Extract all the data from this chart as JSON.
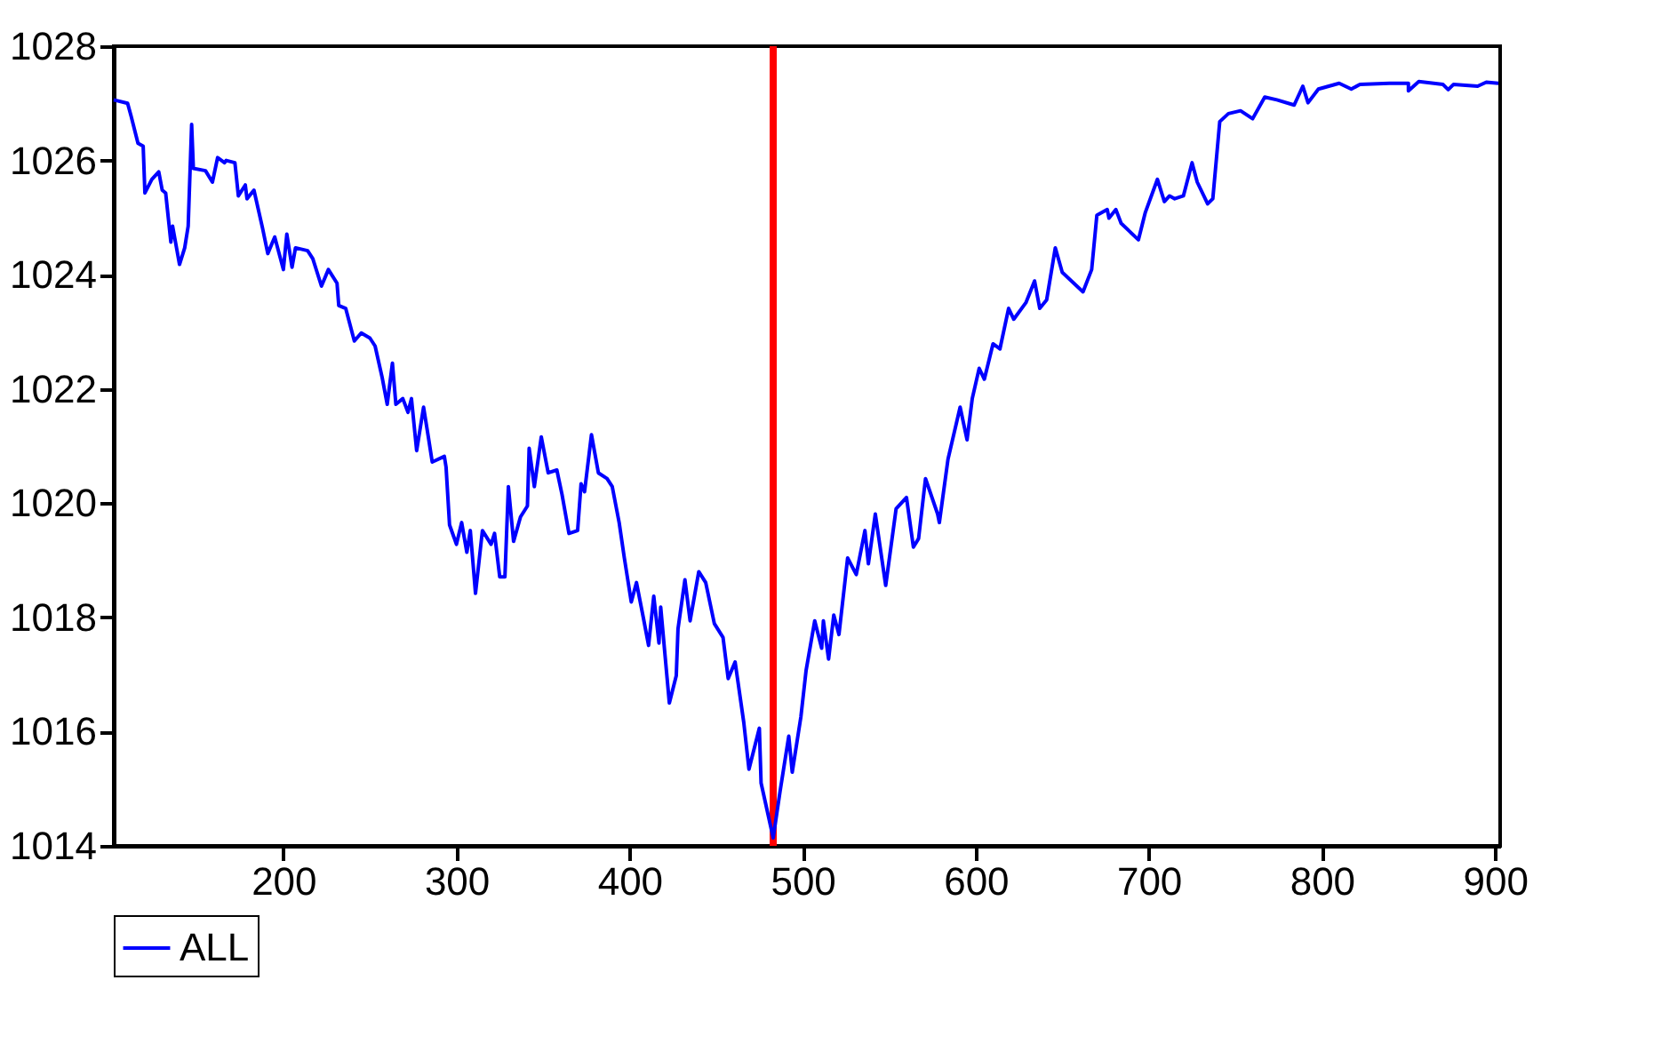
{
  "chart_data": {
    "type": "line",
    "xlim": [
      102,
      903
    ],
    "ylim": [
      1014,
      1028
    ],
    "xticks": [
      200,
      300,
      400,
      500,
      600,
      700,
      800,
      900
    ],
    "yticks": [
      1014,
      1016,
      1018,
      1020,
      1022,
      1024,
      1026,
      1028
    ],
    "grid": false,
    "legend": "bottom",
    "marker": "none",
    "line_style": "solid",
    "series": [
      {
        "name": "ALL",
        "color": "#0000ff",
        "x": [
          102,
          110,
          112,
          116,
          119,
          120,
          124,
          128,
          130,
          132,
          135,
          136,
          140,
          143,
          145,
          147,
          148,
          155,
          159,
          162,
          166,
          167,
          172,
          174,
          178,
          179,
          183,
          188,
          191,
          195,
          200,
          202,
          205,
          207,
          214,
          217,
          222,
          226,
          231,
          232,
          236,
          241,
          245,
          250,
          253,
          257,
          260,
          263,
          265,
          269,
          272,
          274,
          277,
          281,
          284,
          286,
          293,
          294,
          296,
          300,
          303,
          306,
          308,
          311,
          315,
          320,
          322,
          325,
          328,
          330,
          333,
          337,
          341,
          342,
          345,
          349,
          353,
          358,
          361,
          365,
          370,
          372,
          374,
          378,
          382,
          387,
          390,
          394,
          397,
          401,
          404,
          408,
          411,
          414,
          417,
          418,
          423,
          427,
          428,
          432,
          435,
          440,
          444,
          449,
          454,
          457,
          461,
          466,
          469,
          475,
          476,
          483,
          487,
          492,
          494,
          499,
          502,
          507,
          511,
          512,
          515,
          518,
          521,
          526,
          531,
          536,
          538,
          542,
          548,
          554,
          560,
          564,
          567,
          571,
          578,
          579,
          584,
          591,
          595,
          598,
          602,
          605,
          610,
          614,
          619,
          622,
          629,
          634,
          637,
          641,
          646,
          650,
          662,
          667,
          670,
          676,
          677,
          681,
          684,
          694,
          698,
          705,
          709,
          712,
          715,
          720,
          725,
          728,
          734,
          737,
          741,
          746,
          753,
          760,
          767,
          774,
          784,
          789,
          792,
          798,
          810,
          817,
          822,
          839,
          850,
          850,
          856,
          870,
          873,
          876,
          890,
          895,
          902
        ],
        "values": [
          1027.06,
          1027.0,
          1026.78,
          1026.3,
          1026.25,
          1025.43,
          1025.67,
          1025.8,
          1025.48,
          1025.43,
          1024.57,
          1024.85,
          1024.18,
          1024.47,
          1024.85,
          1026.63,
          1025.86,
          1025.82,
          1025.62,
          1026.05,
          1025.96,
          1026.0,
          1025.96,
          1025.38,
          1025.57,
          1025.33,
          1025.48,
          1024.81,
          1024.37,
          1024.66,
          1024.09,
          1024.71,
          1024.13,
          1024.47,
          1024.42,
          1024.28,
          1023.8,
          1024.09,
          1023.85,
          1023.46,
          1023.41,
          1022.84,
          1022.98,
          1022.89,
          1022.75,
          1022.21,
          1021.73,
          1022.45,
          1021.73,
          1021.83,
          1021.59,
          1021.83,
          1020.92,
          1021.68,
          1021.11,
          1020.72,
          1020.82,
          1020.63,
          1019.62,
          1019.28,
          1019.66,
          1019.14,
          1019.52,
          1018.42,
          1019.52,
          1019.28,
          1019.47,
          1018.71,
          1018.71,
          1020.29,
          1019.33,
          1019.76,
          1019.95,
          1020.96,
          1020.29,
          1021.16,
          1020.53,
          1020.58,
          1020.15,
          1019.47,
          1019.52,
          1020.34,
          1020.2,
          1021.2,
          1020.53,
          1020.43,
          1020.29,
          1019.66,
          1019.04,
          1018.27,
          1018.61,
          1017.99,
          1017.51,
          1018.37,
          1017.55,
          1018.18,
          1016.5,
          1016.98,
          1017.8,
          1018.66,
          1017.94,
          1018.8,
          1018.61,
          1017.89,
          1017.65,
          1016.93,
          1017.22,
          1016.16,
          1015.34,
          1016.06,
          1015.1,
          1014.14,
          1014.96,
          1015.92,
          1015.29,
          1016.26,
          1017.07,
          1017.94,
          1017.46,
          1017.94,
          1017.27,
          1018.04,
          1017.7,
          1019.04,
          1018.75,
          1019.52,
          1018.94,
          1019.81,
          1018.56,
          1019.9,
          1020.1,
          1019.23,
          1019.38,
          1020.43,
          1019.81,
          1019.66,
          1020.77,
          1021.68,
          1021.11,
          1021.83,
          1022.36,
          1022.17,
          1022.79,
          1022.7,
          1023.41,
          1023.22,
          1023.51,
          1023.89,
          1023.41,
          1023.56,
          1024.47,
          1024.04,
          1023.7,
          1024.09,
          1025.04,
          1025.14,
          1024.99,
          1025.14,
          1024.9,
          1024.61,
          1025.09,
          1025.67,
          1025.28,
          1025.38,
          1025.33,
          1025.38,
          1025.96,
          1025.62,
          1025.24,
          1025.33,
          1026.68,
          1026.82,
          1026.87,
          1026.73,
          1027.11,
          1027.06,
          1026.97,
          1027.3,
          1027.01,
          1027.25,
          1027.35,
          1027.25,
          1027.33,
          1027.35,
          1027.35,
          1027.22,
          1027.38,
          1027.33,
          1027.24,
          1027.33,
          1027.3,
          1027.37,
          1027.35
        ]
      }
    ],
    "ref_lines": [
      {
        "axis": "x",
        "value": 483,
        "color": "#ff0000",
        "line_style": "solid"
      }
    ]
  }
}
